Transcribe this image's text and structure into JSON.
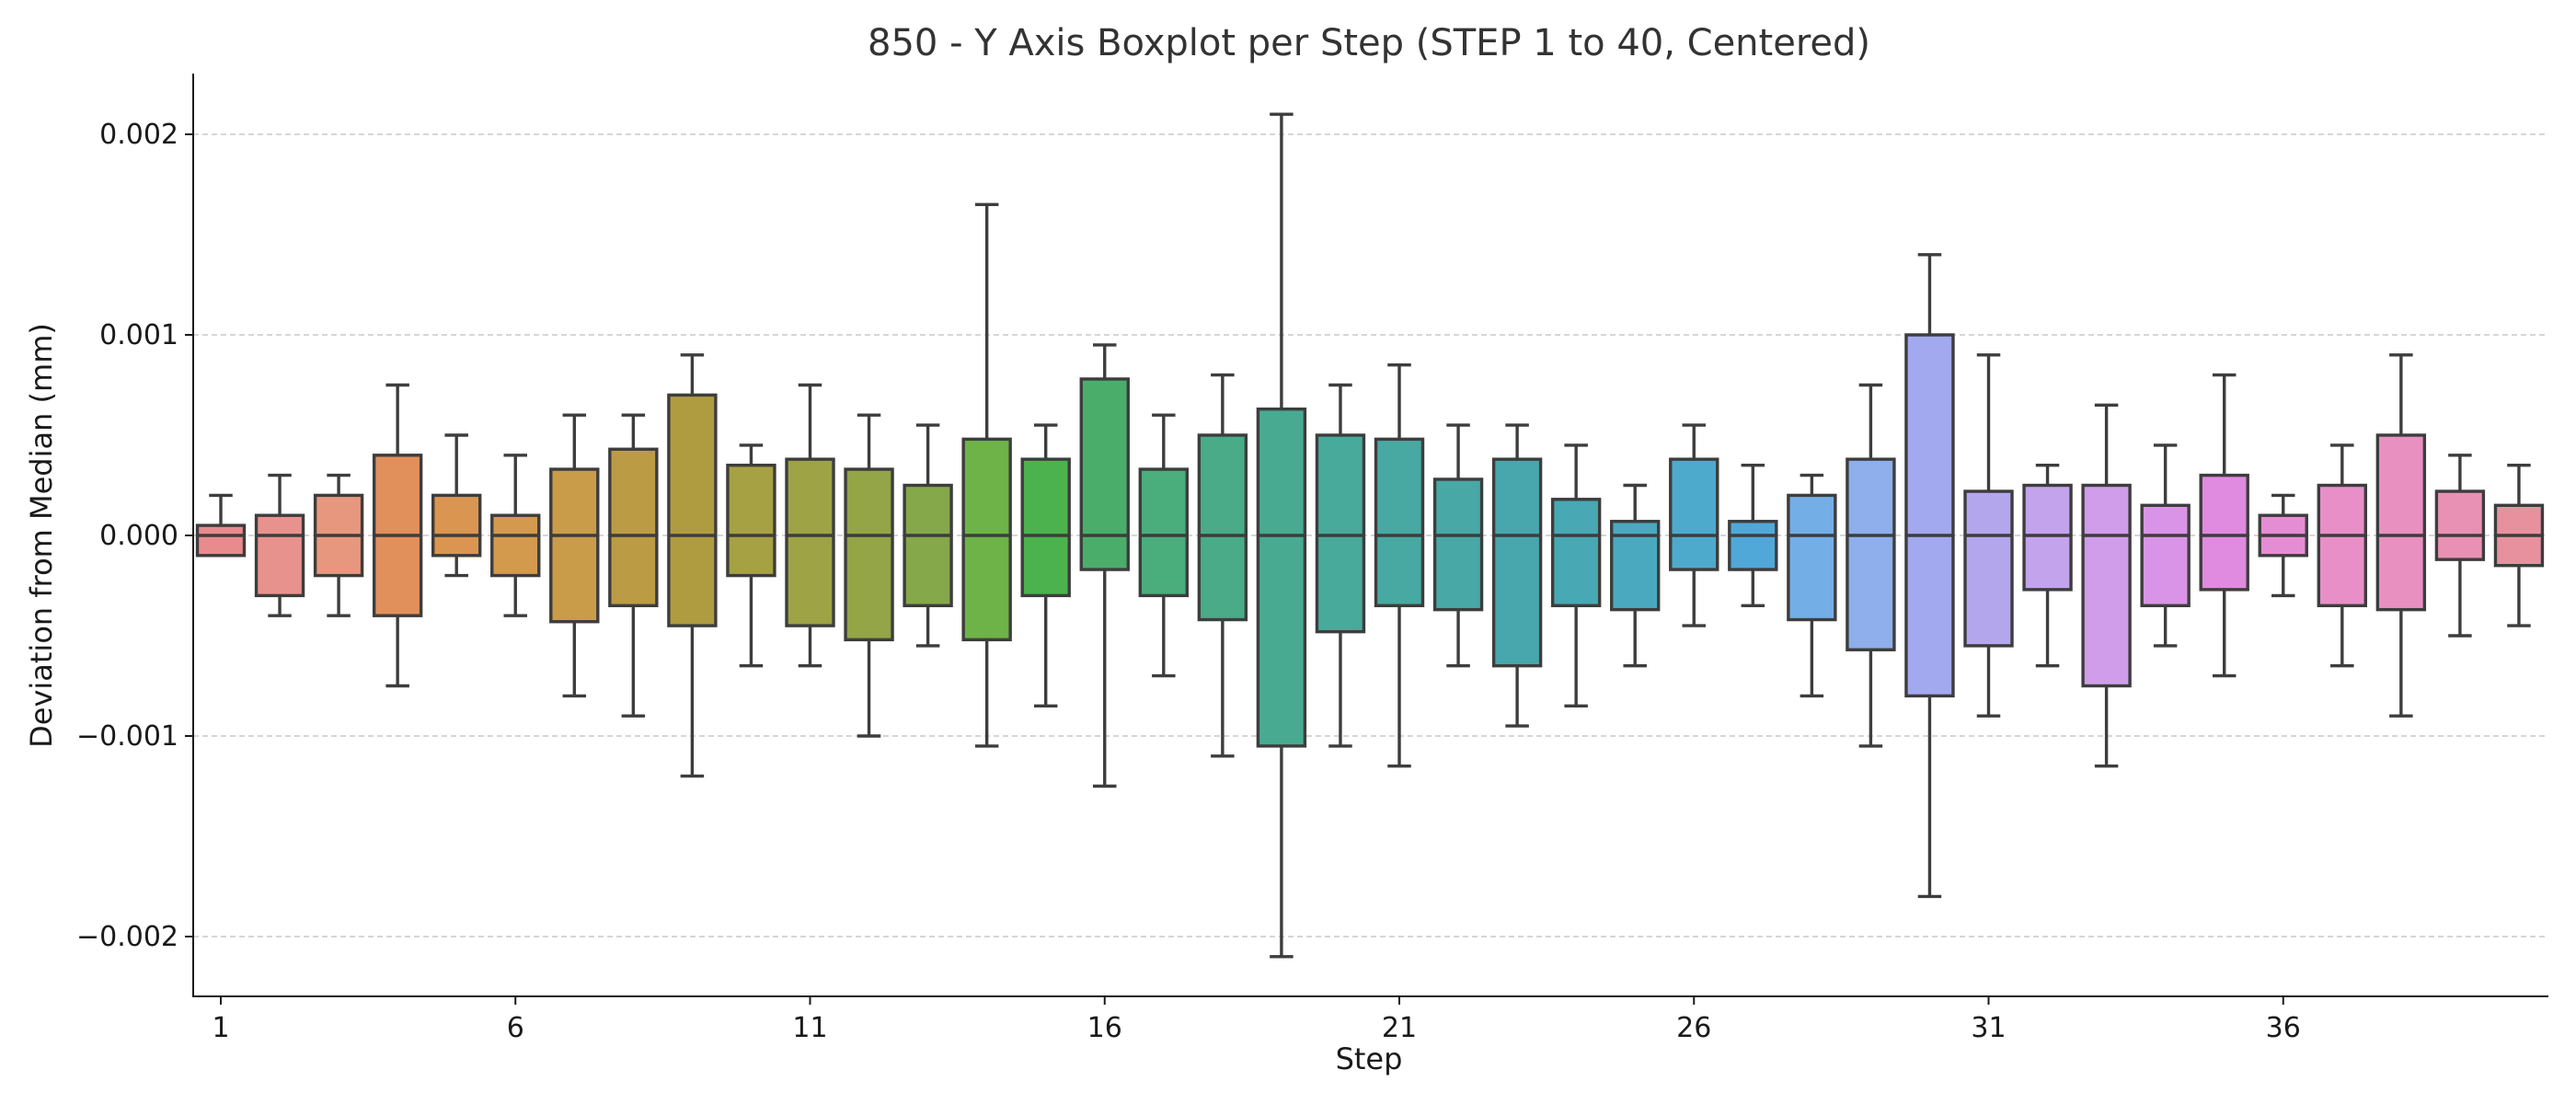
{
  "chart_data": {
    "type": "boxplot",
    "title": "850 - Y Axis Boxplot per Step (STEP 1 to 40, Centered)",
    "xlabel": "Step",
    "ylabel": "Deviation from Median (mm)",
    "ylim": [
      -0.00231,
      0.00231
    ],
    "yticks": [
      0.002,
      0.001,
      0.0,
      -0.001,
      -0.002
    ],
    "ytick_labels": [
      "0.002",
      "0.001",
      "0.000",
      "−0.001",
      "−0.002"
    ],
    "xtick_steps": [
      1,
      6,
      11,
      16,
      21,
      26,
      31,
      36
    ],
    "grid": "y",
    "boxes": [
      {
        "step": 1,
        "whisker_low": -0.0001,
        "q1": -0.0001,
        "median": 0,
        "q3": 5e-05,
        "whisker_high": 0.0002,
        "color": "#e88a8e"
      },
      {
        "step": 2,
        "whisker_low": -0.0004,
        "q1": -0.0003,
        "median": 0,
        "q3": 0.0001,
        "whisker_high": 0.0003,
        "color": "#e8928e"
      },
      {
        "step": 3,
        "whisker_low": -0.0004,
        "q1": -0.0002,
        "median": 0,
        "q3": 0.0002,
        "whisker_high": 0.0003,
        "color": "#e8977f"
      },
      {
        "step": 4,
        "whisker_low": -0.00075,
        "q1": -0.0004,
        "median": 0,
        "q3": 0.0004,
        "whisker_high": 0.00075,
        "color": "#e1905c"
      },
      {
        "step": 5,
        "whisker_low": -0.0002,
        "q1": -0.0001,
        "median": 0,
        "q3": 0.0002,
        "whisker_high": 0.0005,
        "color": "#da9650"
      },
      {
        "step": 6,
        "whisker_low": -0.0004,
        "q1": -0.0002,
        "median": 0,
        "q3": 0.0001,
        "whisker_high": 0.0004,
        "color": "#d39a4e"
      },
      {
        "step": 7,
        "whisker_low": -0.0008,
        "q1": -0.00043,
        "median": 0,
        "q3": 0.00033,
        "whisker_high": 0.0006,
        "color": "#c99c4a"
      },
      {
        "step": 8,
        "whisker_low": -0.0009,
        "q1": -0.00035,
        "median": 0,
        "q3": 0.00043,
        "whisker_high": 0.0006,
        "color": "#bb9c45"
      },
      {
        "step": 9,
        "whisker_low": -0.0012,
        "q1": -0.00045,
        "median": 0,
        "q3": 0.0007,
        "whisker_high": 0.0009,
        "color": "#b09c40"
      },
      {
        "step": 10,
        "whisker_low": -0.00065,
        "q1": -0.0002,
        "median": 0,
        "q3": 0.00035,
        "whisker_high": 0.00045,
        "color": "#a6a143"
      },
      {
        "step": 11,
        "whisker_low": -0.00065,
        "q1": -0.00045,
        "median": 0,
        "q3": 0.00038,
        "whisker_high": 0.00075,
        "color": "#9ea345"
      },
      {
        "step": 12,
        "whisker_low": -0.001,
        "q1": -0.00052,
        "median": 0,
        "q3": 0.00033,
        "whisker_high": 0.0006,
        "color": "#93a547"
      },
      {
        "step": 13,
        "whisker_low": -0.00055,
        "q1": -0.00035,
        "median": 0,
        "q3": 0.00025,
        "whisker_high": 0.00055,
        "color": "#84a84a"
      },
      {
        "step": 14,
        "whisker_low": -0.00105,
        "q1": -0.00052,
        "median": 0,
        "q3": 0.00048,
        "whisker_high": 0.00165,
        "color": "#6db347"
      },
      {
        "step": 15,
        "whisker_low": -0.00085,
        "q1": -0.0003,
        "median": 0,
        "q3": 0.00038,
        "whisker_high": 0.00055,
        "color": "#4cb24e"
      },
      {
        "step": 16,
        "whisker_low": -0.00125,
        "q1": -0.00017,
        "median": 0,
        "q3": 0.00078,
        "whisker_high": 0.00095,
        "color": "#4aae6a"
      },
      {
        "step": 17,
        "whisker_low": -0.0007,
        "q1": -0.0003,
        "median": 0,
        "q3": 0.00033,
        "whisker_high": 0.0006,
        "color": "#4aad7c"
      },
      {
        "step": 18,
        "whisker_low": -0.0011,
        "q1": -0.00042,
        "median": 0,
        "q3": 0.0005,
        "whisker_high": 0.0008,
        "color": "#49ab88"
      },
      {
        "step": 19,
        "whisker_low": -0.0021,
        "q1": -0.00105,
        "median": 0,
        "q3": 0.00063,
        "whisker_high": 0.0021,
        "color": "#48ab91"
      },
      {
        "step": 20,
        "whisker_low": -0.00105,
        "q1": -0.00048,
        "median": 0,
        "q3": 0.0005,
        "whisker_high": 0.00075,
        "color": "#48aa9a"
      },
      {
        "step": 21,
        "whisker_low": -0.00115,
        "q1": -0.00035,
        "median": 0,
        "q3": 0.00048,
        "whisker_high": 0.00085,
        "color": "#47a9a1"
      },
      {
        "step": 22,
        "whisker_low": -0.00065,
        "q1": -0.00037,
        "median": 0,
        "q3": 0.00028,
        "whisker_high": 0.00055,
        "color": "#47a8a6"
      },
      {
        "step": 23,
        "whisker_low": -0.00095,
        "q1": -0.00065,
        "median": 0,
        "q3": 0.00038,
        "whisker_high": 0.00055,
        "color": "#47a7ac"
      },
      {
        "step": 24,
        "whisker_low": -0.00085,
        "q1": -0.00035,
        "median": 0,
        "q3": 0.00018,
        "whisker_high": 0.00045,
        "color": "#48a8b4"
      },
      {
        "step": 25,
        "whisker_low": -0.00065,
        "q1": -0.00037,
        "median": 0,
        "q3": 7e-05,
        "whisker_high": 0.00025,
        "color": "#4aa9bf"
      },
      {
        "step": 26,
        "whisker_low": -0.00045,
        "q1": -0.00017,
        "median": 0,
        "q3": 0.00038,
        "whisker_high": 0.00055,
        "color": "#4eaacd"
      },
      {
        "step": 27,
        "whisker_low": -0.00035,
        "q1": -0.00017,
        "median": 0,
        "q3": 7e-05,
        "whisker_high": 0.00035,
        "color": "#50a8d9"
      },
      {
        "step": 28,
        "whisker_low": -0.0008,
        "q1": -0.00042,
        "median": 0,
        "q3": 0.0002,
        "whisker_high": 0.0003,
        "color": "#74aee6"
      },
      {
        "step": 29,
        "whisker_low": -0.00105,
        "q1": -0.00057,
        "median": 0,
        "q3": 0.00038,
        "whisker_high": 0.00075,
        "color": "#8eaeec"
      },
      {
        "step": 30,
        "whisker_low": -0.0018,
        "q1": -0.0008,
        "median": 0,
        "q3": 0.001,
        "whisker_high": 0.0014,
        "color": "#a3a9ee"
      },
      {
        "step": 31,
        "whisker_low": -0.0009,
        "q1": -0.00055,
        "median": 0,
        "q3": 0.00022,
        "whisker_high": 0.0009,
        "color": "#b4a6ed"
      },
      {
        "step": 32,
        "whisker_low": -0.00065,
        "q1": -0.00027,
        "median": 0,
        "q3": 0.00025,
        "whisker_high": 0.00035,
        "color": "#c3a3ec"
      },
      {
        "step": 33,
        "whisker_low": -0.00115,
        "q1": -0.00075,
        "median": 0,
        "q3": 0.00025,
        "whisker_high": 0.00065,
        "color": "#cf9de9"
      },
      {
        "step": 34,
        "whisker_low": -0.00055,
        "q1": -0.00035,
        "median": 0,
        "q3": 0.00015,
        "whisker_high": 0.00045,
        "color": "#da94e7"
      },
      {
        "step": 35,
        "whisker_low": -0.0007,
        "q1": -0.00027,
        "median": 0,
        "q3": 0.0003,
        "whisker_high": 0.0008,
        "color": "#e08ae0"
      },
      {
        "step": 36,
        "whisker_low": -0.0003,
        "q1": -0.0001,
        "median": 0,
        "q3": 0.0001,
        "whisker_high": 0.0002,
        "color": "#e58dd4"
      },
      {
        "step": 37,
        "whisker_low": -0.00065,
        "q1": -0.00035,
        "median": 0,
        "q3": 0.00025,
        "whisker_high": 0.00045,
        "color": "#e88fc8"
      },
      {
        "step": 38,
        "whisker_low": -0.0009,
        "q1": -0.00037,
        "median": 0,
        "q3": 0.0005,
        "whisker_high": 0.0009,
        "color": "#e890c0"
      },
      {
        "step": 39,
        "whisker_low": -0.0005,
        "q1": -0.00012,
        "median": 0,
        "q3": 0.00022,
        "whisker_high": 0.0004,
        "color": "#e891b4"
      },
      {
        "step": 40,
        "whisker_low": -0.00045,
        "q1": -0.00015,
        "median": 0,
        "q3": 0.00015,
        "whisker_high": 0.00035,
        "color": "#e8919e"
      }
    ]
  }
}
